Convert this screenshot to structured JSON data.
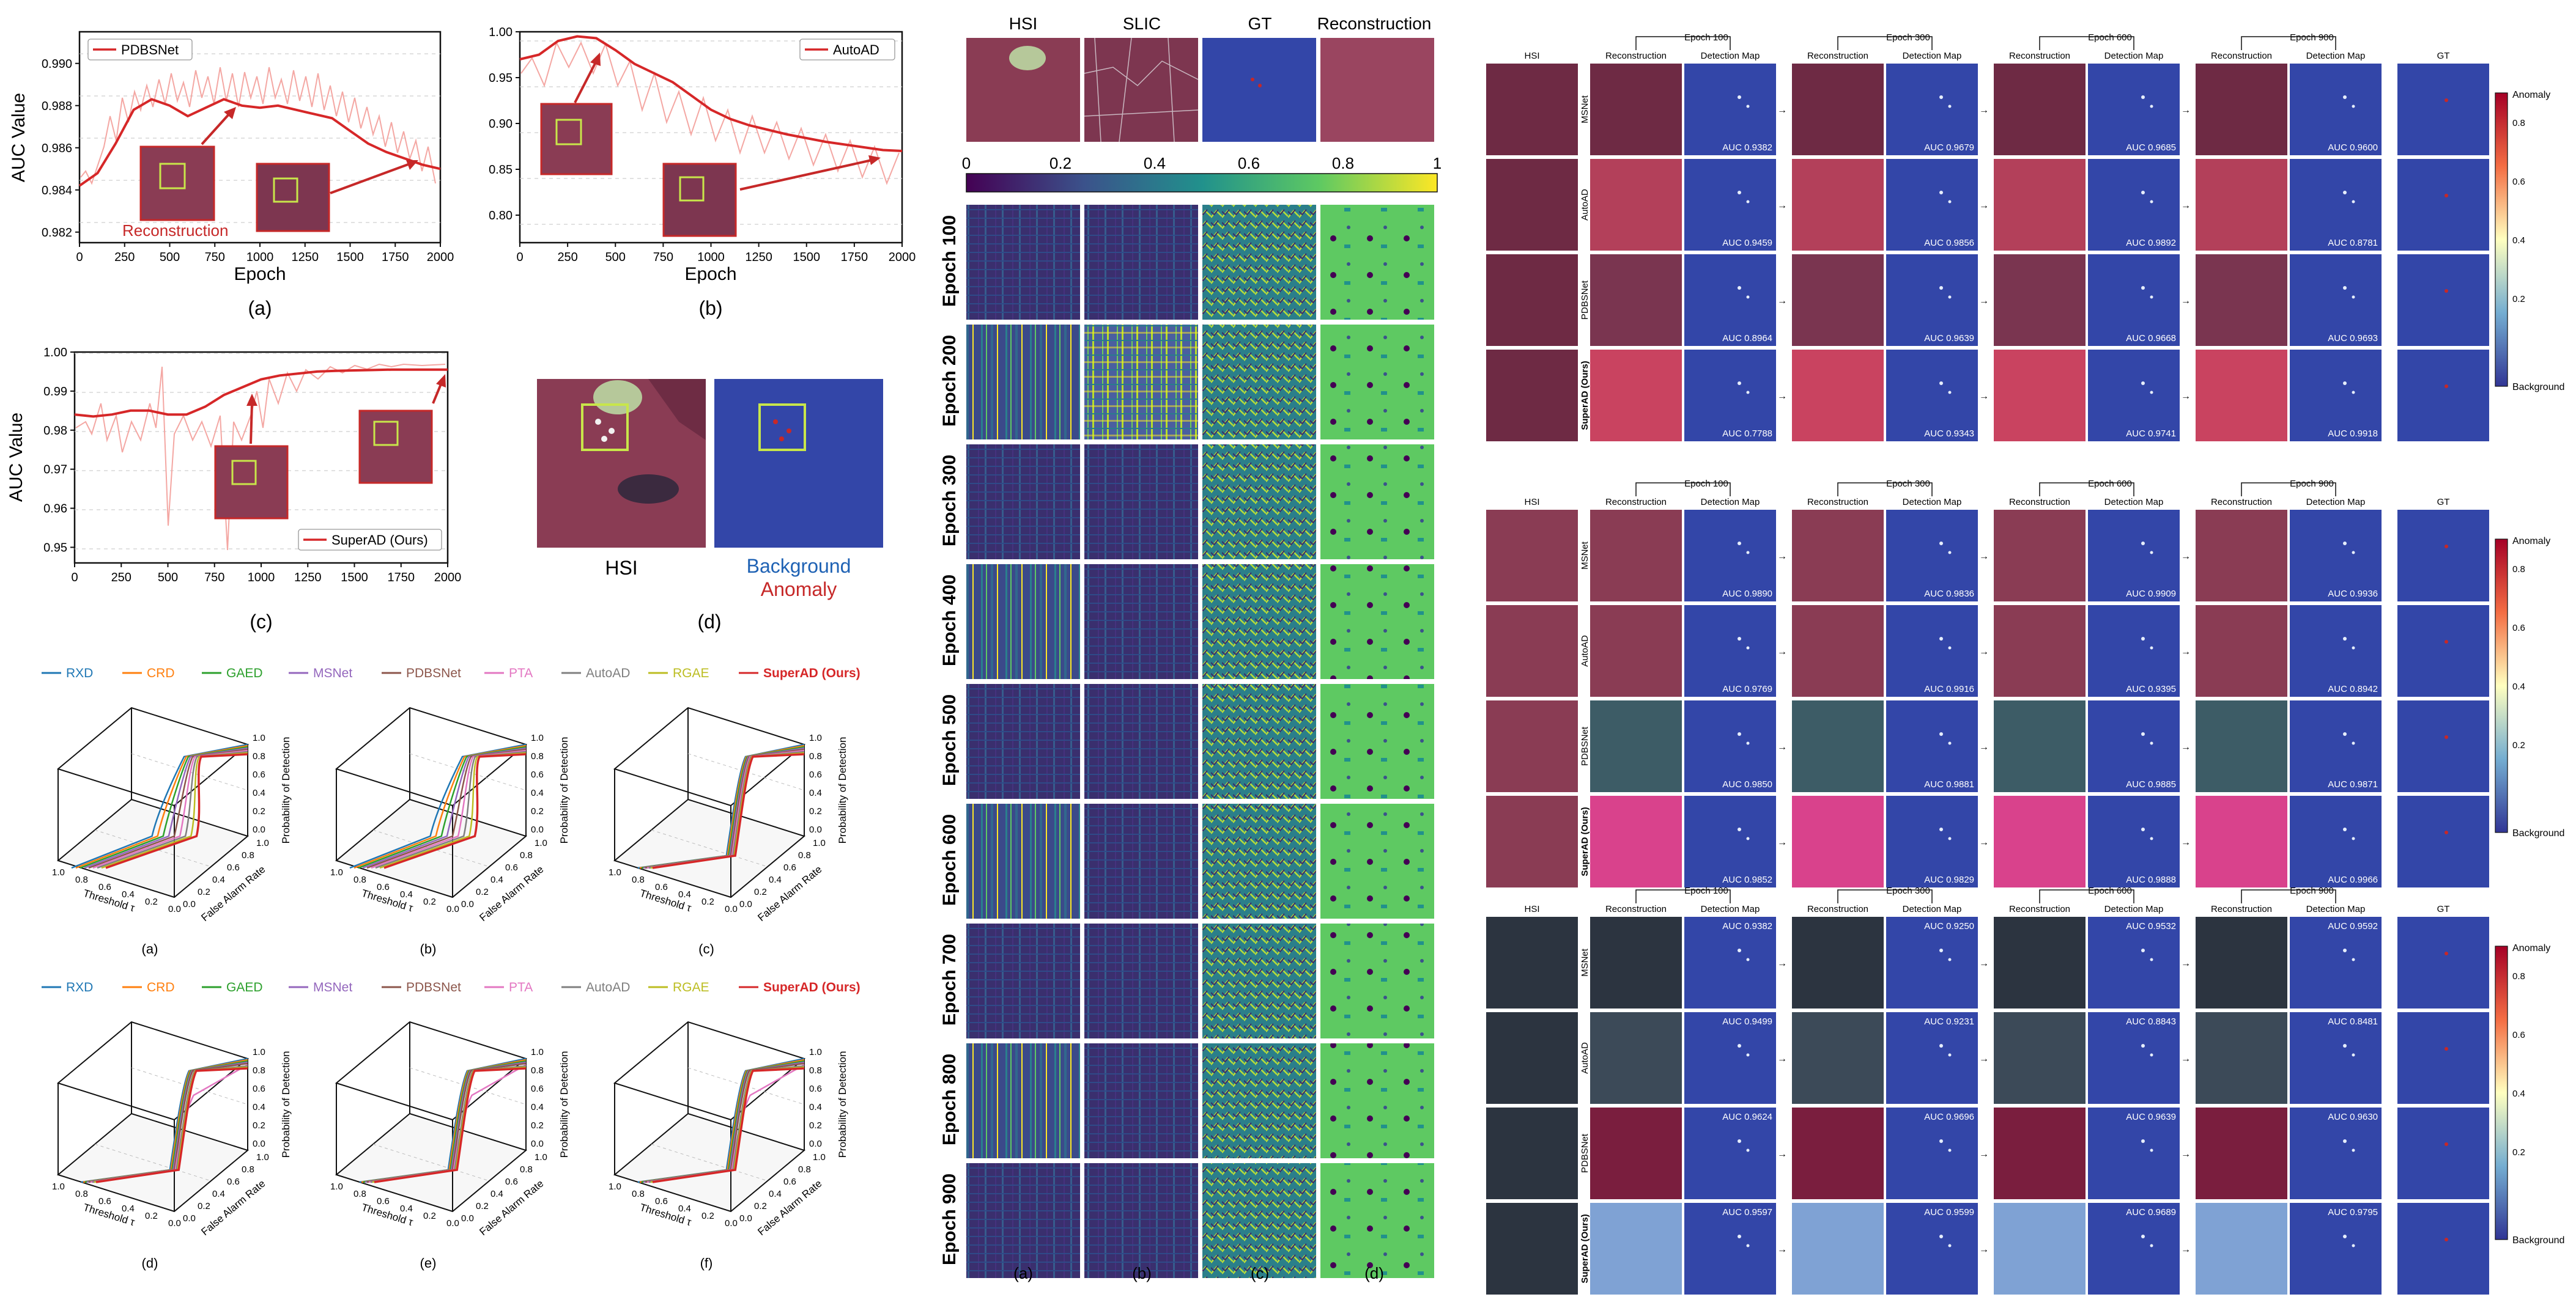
{
  "figure_a": {
    "panels": [
      {
        "label": "(a)",
        "legend": "PDBSNet",
        "annotation": "Reconstruction",
        "ylabel": "AUC Value",
        "xlabel": "Epoch"
      },
      {
        "label": "(b)",
        "legend": "AutoAD",
        "xlabel": "Epoch"
      },
      {
        "label": "(c)",
        "legend": "SuperAD (Ours)",
        "ylabel": "AUC Value",
        "xlabel": "Epoch"
      },
      {
        "label": "(d)",
        "hsi_label": "HSI",
        "background_label": "Background",
        "anomaly_label": "Anomaly"
      }
    ]
  },
  "chart_data": [
    {
      "type": "line",
      "title": "(a)",
      "xlabel": "Epoch",
      "ylabel": "AUC Value",
      "xlim": [
        0,
        2000
      ],
      "ylim": [
        0.9815,
        0.9915
      ],
      "x_ticks": [
        "0",
        "250",
        "500",
        "750",
        "1000",
        "1250",
        "1500",
        "1750",
        "2000"
      ],
      "y_ticks": [
        "0.982",
        "0.984",
        "0.986",
        "0.988",
        "0.990"
      ],
      "series": [
        {
          "name": "PDBSNet",
          "x": [
            0,
            100,
            200,
            300,
            400,
            500,
            600,
            700,
            800,
            900,
            1000,
            1100,
            1200,
            1300,
            1400,
            1500,
            1600,
            1700,
            1800,
            1900,
            2000
          ],
          "y": [
            0.9842,
            0.9848,
            0.9862,
            0.9878,
            0.9883,
            0.988,
            0.9875,
            0.9879,
            0.9883,
            0.988,
            0.9879,
            0.988,
            0.9878,
            0.9876,
            0.9874,
            0.9868,
            0.9862,
            0.9858,
            0.9855,
            0.9852,
            0.985
          ]
        }
      ]
    },
    {
      "type": "line",
      "title": "(b)",
      "xlabel": "Epoch",
      "xlim": [
        0,
        2000
      ],
      "ylim": [
        0.77,
        1.0
      ],
      "x_ticks": [
        "0",
        "250",
        "500",
        "750",
        "1000",
        "1250",
        "1500",
        "1750",
        "2000"
      ],
      "y_ticks": [
        "0.80",
        "0.85",
        "0.90",
        "0.95",
        "1.00"
      ],
      "series": [
        {
          "name": "AutoAD",
          "x": [
            0,
            100,
            200,
            300,
            400,
            500,
            600,
            700,
            800,
            900,
            1000,
            1100,
            1200,
            1300,
            1400,
            1500,
            1600,
            1700,
            1800,
            1900,
            2000
          ],
          "y": [
            0.97,
            0.975,
            0.99,
            0.995,
            0.993,
            0.98,
            0.965,
            0.955,
            0.945,
            0.93,
            0.915,
            0.905,
            0.898,
            0.893,
            0.888,
            0.884,
            0.88,
            0.877,
            0.874,
            0.871,
            0.87
          ]
        }
      ]
    },
    {
      "type": "line",
      "title": "(c)",
      "xlabel": "Epoch",
      "ylabel": "AUC Value",
      "xlim": [
        0,
        2000
      ],
      "ylim": [
        0.946,
        1.0
      ],
      "x_ticks": [
        "0",
        "250",
        "500",
        "750",
        "1000",
        "1250",
        "1500",
        "1750",
        "2000"
      ],
      "y_ticks": [
        "0.95",
        "0.96",
        "0.97",
        "0.98",
        "0.99",
        "1.00"
      ],
      "series": [
        {
          "name": "SuperAD (Ours)",
          "x": [
            0,
            100,
            200,
            300,
            400,
            500,
            600,
            700,
            800,
            900,
            1000,
            1100,
            1200,
            1300,
            1400,
            1500,
            1600,
            1700,
            1800,
            1900,
            2000
          ],
          "y": [
            0.984,
            0.9835,
            0.984,
            0.985,
            0.985,
            0.984,
            0.984,
            0.986,
            0.989,
            0.991,
            0.993,
            0.994,
            0.9945,
            0.995,
            0.9952,
            0.9953,
            0.9954,
            0.9955,
            0.9955,
            0.9955,
            0.9955
          ]
        }
      ]
    }
  ],
  "roc": {
    "legend": [
      "RXD",
      "CRD",
      "GAED",
      "MSNet",
      "PDBSNet",
      "PTA",
      "AutoAD",
      "RGAE",
      "SuperAD (Ours)"
    ],
    "legend_colors": [
      "#1f77b4",
      "#ff7f0e",
      "#2ca02c",
      "#9467bd",
      "#8c564b",
      "#e377c2",
      "#7f7f7f",
      "#bcbd22",
      "#d62728"
    ],
    "axis_threshold": "Threshold τ",
    "axis_far": "False Alarm Rate",
    "axis_pd": "Probability of Detection",
    "ticks_t": [
      "1.0",
      "0.8",
      "0.6",
      "0.4",
      "0.2",
      "0.0"
    ],
    "ticks_f": [
      "0.0",
      "0.2",
      "0.4",
      "0.6",
      "0.8",
      "1.0"
    ],
    "ticks_p": [
      "0.0",
      "0.2",
      "0.4",
      "0.6",
      "0.8",
      "1.0"
    ],
    "labels": [
      "(a)",
      "(b)",
      "(c)",
      "(d)",
      "(e)",
      "(f)"
    ]
  },
  "epochs_grid": {
    "columns": [
      "HSI",
      "SLIC",
      "GT",
      "Reconstruction"
    ],
    "colorbar_ticks": [
      "0",
      "0.2",
      "0.4",
      "0.6",
      "0.8",
      "1"
    ],
    "rows": [
      "Epoch 100",
      "Epoch 200",
      "Epoch 300",
      "Epoch 400",
      "Epoch 500",
      "Epoch 600",
      "Epoch 700",
      "Epoch 800",
      "Epoch 900"
    ],
    "labels": [
      "(a)",
      "(b)",
      "(c)",
      "(d)"
    ]
  },
  "comparison": {
    "col_hsi": "HSI",
    "col_recon": "Reconstruction",
    "col_det": "Detection Map",
    "col_gt": "GT",
    "epochs": [
      "Epoch 100",
      "Epoch 300",
      "Epoch 600",
      "Epoch 900"
    ],
    "methods": [
      "MSNet",
      "AutoAD",
      "PDBSNet",
      "SuperAD (Ours)"
    ],
    "colorbar_top": "Anomaly",
    "colorbar_bottom": "Background",
    "colorbar_ticks": [
      "0.8",
      "0.6",
      "0.4",
      "0.2"
    ],
    "blocks": [
      {
        "auc": [
          [
            "AUC 0.9382",
            "AUC 0.9679",
            "AUC 0.9685",
            "AUC 0.9600"
          ],
          [
            "AUC 0.9459",
            "AUC 0.9856",
            "AUC 0.9892",
            "AUC 0.8781"
          ],
          [
            "AUC 0.8964",
            "AUC 0.9639",
            "AUC 0.9668",
            "AUC 0.9693"
          ],
          [
            "AUC 0.7788",
            "AUC 0.9343",
            "AUC 0.9741",
            "AUC 0.9918"
          ]
        ]
      },
      {
        "auc": [
          [
            "AUC 0.9890",
            "AUC 0.9836",
            "AUC 0.9909",
            "AUC 0.9936"
          ],
          [
            "AUC 0.9769",
            "AUC 0.9916",
            "AUC 0.9395",
            "AUC 0.8942"
          ],
          [
            "AUC 0.9850",
            "AUC 0.9881",
            "AUC 0.9885",
            "AUC 0.9871"
          ],
          [
            "AUC 0.9852",
            "AUC 0.9829",
            "AUC 0.9888",
            "AUC 0.9966"
          ]
        ]
      },
      {
        "auc": [
          [
            "AUC 0.9382",
            "AUC 0.9250",
            "AUC 0.9532",
            "AUC 0.9592"
          ],
          [
            "AUC 0.9499",
            "AUC 0.9231",
            "AUC 0.8843",
            "AUC 0.8481"
          ],
          [
            "AUC 0.9624",
            "AUC 0.9696",
            "AUC 0.9639",
            "AUC 0.9630"
          ],
          [
            "AUC 0.9597",
            "AUC 0.9599",
            "AUC 0.9689",
            "AUC 0.9795"
          ]
        ]
      }
    ]
  },
  "colors": {
    "series_red": "#d62728",
    "series_light": "#f4a7a3",
    "det_blue": "#3346a8",
    "hsi_red": "#8a3c54",
    "urban_gray": "#2c3440",
    "viridis_dark": "#3a1f5f",
    "viridis_mid": "#21918c",
    "viridis_light": "#fde725"
  }
}
